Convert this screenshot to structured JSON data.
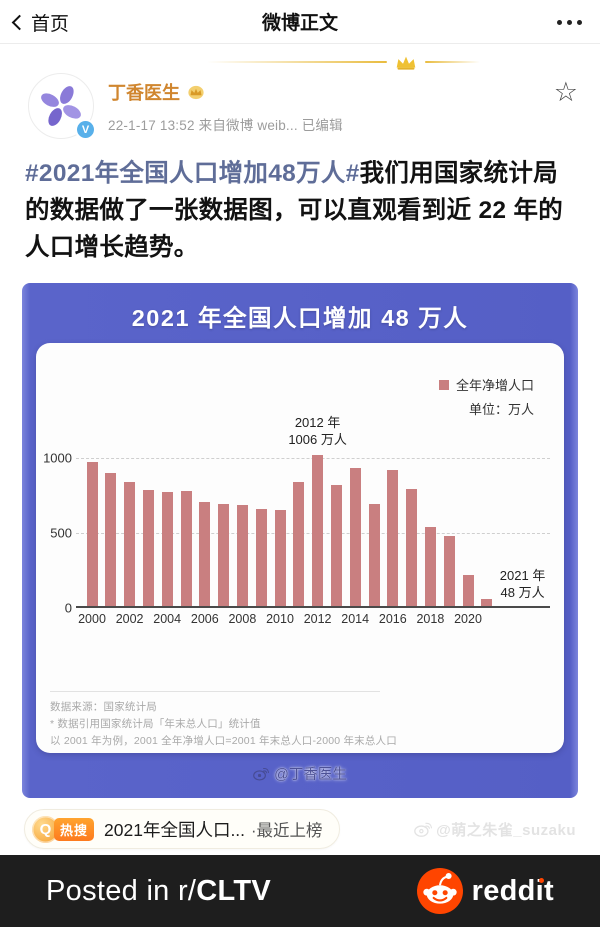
{
  "navbar": {
    "back_label": "首页",
    "title": "微博正文"
  },
  "profile": {
    "username": "丁香医生",
    "timestamp": "22-1-17 13:52 来自微博 weib... 已编辑"
  },
  "post": {
    "hashtag": "#2021年全国人口增加48万人#",
    "body": "我们用国家统计局的数据做了一张数据图，可以直观看到近 22 年的人口增长趋势。"
  },
  "chart_data": {
    "type": "bar",
    "title": "2021 年全国人口增加 48 万人",
    "legend": "全年净增人口",
    "legend_position": "top-right",
    "unit_label": "单位：万人",
    "bar_color": "#c97f80",
    "grid": "dashed horizontal",
    "categories": [
      2000,
      2001,
      2002,
      2003,
      2004,
      2005,
      2006,
      2007,
      2008,
      2009,
      2010,
      2011,
      2012,
      2013,
      2014,
      2015,
      2016,
      2017,
      2018,
      2019,
      2020,
      2021
    ],
    "values": [
      957,
      884,
      826,
      774,
      761,
      768,
      692,
      681,
      673,
      648,
      641,
      825,
      1006,
      804,
      920,
      680,
      906,
      779,
      530,
      467,
      204,
      48
    ],
    "x_tick_step": 2,
    "y_ticks": [
      0,
      500,
      1000
    ],
    "ylim": [
      0,
      1100
    ],
    "annotations": [
      {
        "year": 2012,
        "line1": "2012 年",
        "line2": "1006 万人",
        "placement": "above"
      },
      {
        "year": 2021,
        "line1": "2021 年",
        "line2": "48 万人",
        "placement": "right"
      }
    ],
    "source_note": "数据来源：国家统计局",
    "footnote1": "* 数据引用国家统计局「年末总人口」统计值",
    "footnote2": "以 2001 年为例，2001 全年净增人口=2001 年末总人口-2000 年末总人口",
    "watermark": "@丁香医生"
  },
  "hot_search": {
    "badge": "热搜",
    "text": "2021年全国人口...",
    "suffix": "·最近上榜"
  },
  "image_watermark": "@萌之朱雀_suzaku",
  "reddit_bar": {
    "posted_prefix": "Posted in r/",
    "subreddit": "CLTV",
    "brand": "reddit"
  }
}
